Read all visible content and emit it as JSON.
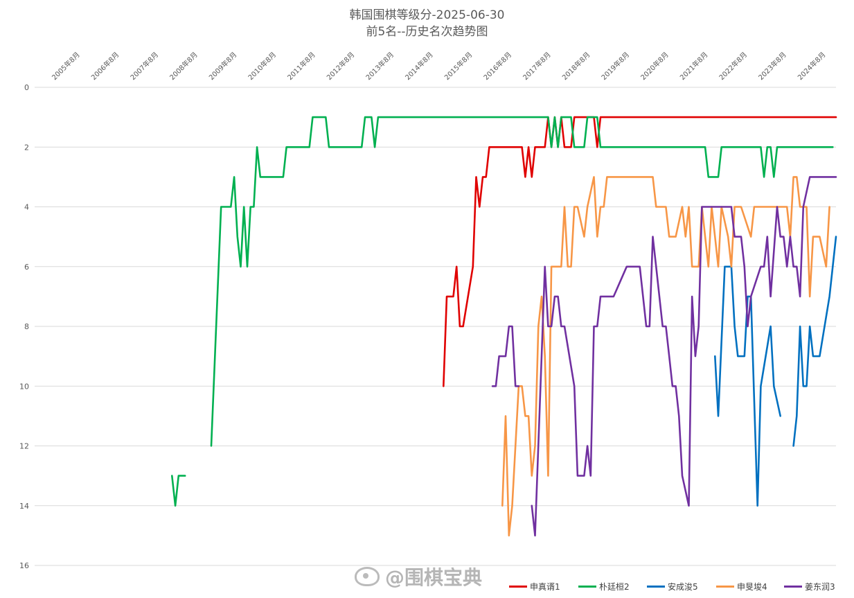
{
  "chart_data": {
    "type": "line",
    "title": "韩国围棋等级分-2025-06-30",
    "subtitle": "前5名--历史名次趋势图",
    "x_tick_labels": [
      "2005年8月",
      "2006年8月",
      "2007年8月",
      "2008年8月",
      "2009年8月",
      "2010年8月",
      "2011年8月",
      "2012年8月",
      "2013年8月",
      "2014年8月",
      "2015年8月",
      "2016年8月",
      "2017年8月",
      "2018年8月",
      "2019年8月",
      "2020年8月",
      "2021年8月",
      "2022年8月",
      "2023年8月",
      "2024年8月"
    ],
    "y_ticks": [
      0,
      2,
      4,
      6,
      8,
      10,
      12,
      14,
      16
    ],
    "ylim": [
      0,
      16
    ],
    "y_reversed": true,
    "x_range": [
      "2005-01",
      "2025-06"
    ],
    "grid": "horizontal",
    "legend_position": "bottom-right",
    "series": [
      {
        "name": "申真谞1",
        "color": "#e00000",
        "points": [
          [
            "2015-06",
            10
          ],
          [
            "2015-07",
            7
          ],
          [
            "2015-09",
            7
          ],
          [
            "2015-10",
            6
          ],
          [
            "2015-11",
            8
          ],
          [
            "2015-12",
            8
          ],
          [
            "2016-03",
            6
          ],
          [
            "2016-04",
            3
          ],
          [
            "2016-05",
            4
          ],
          [
            "2016-06",
            3
          ],
          [
            "2016-07",
            3
          ],
          [
            "2016-08",
            2
          ],
          [
            "2017-06",
            2
          ],
          [
            "2017-07",
            3
          ],
          [
            "2017-08",
            2
          ],
          [
            "2017-09",
            3
          ],
          [
            "2017-10",
            2
          ],
          [
            "2018-01",
            2
          ],
          [
            "2018-02",
            1
          ],
          [
            "2018-03",
            2
          ],
          [
            "2018-04",
            1
          ],
          [
            "2018-05",
            2
          ],
          [
            "2018-06",
            1
          ],
          [
            "2018-07",
            2
          ],
          [
            "2018-09",
            2
          ],
          [
            "2018-10",
            1
          ],
          [
            "2019-04",
            1
          ],
          [
            "2019-05",
            2
          ],
          [
            "2019-06",
            1
          ],
          [
            "2025-06",
            1
          ]
        ]
      },
      {
        "name": "朴廷桓2",
        "color": "#00b050",
        "points": [
          [
            "2008-07",
            13
          ],
          [
            "2008-08",
            14
          ],
          [
            "2008-09",
            13
          ],
          [
            "2008-11",
            13
          ],
          null,
          [
            "2009-07",
            12
          ],
          [
            "2009-10",
            4
          ],
          [
            "2010-01",
            4
          ],
          [
            "2010-02",
            3
          ],
          [
            "2010-03",
            5
          ],
          [
            "2010-04",
            6
          ],
          [
            "2010-05",
            4
          ],
          [
            "2010-06",
            6
          ],
          [
            "2010-07",
            4
          ],
          [
            "2010-08",
            4
          ],
          [
            "2010-09",
            2
          ],
          [
            "2010-10",
            3
          ],
          [
            "2011-05",
            3
          ],
          [
            "2011-06",
            2
          ],
          [
            "2012-01",
            2
          ],
          [
            "2012-02",
            1
          ],
          [
            "2012-06",
            1
          ],
          [
            "2012-07",
            2
          ],
          [
            "2013-05",
            2
          ],
          [
            "2013-06",
            1
          ],
          [
            "2013-08",
            1
          ],
          [
            "2013-09",
            2
          ],
          [
            "2013-10",
            1
          ],
          [
            "2018-02",
            1
          ],
          [
            "2018-03",
            2
          ],
          [
            "2018-04",
            1
          ],
          [
            "2018-05",
            2
          ],
          [
            "2018-06",
            1
          ],
          [
            "2018-09",
            1
          ],
          [
            "2018-10",
            2
          ],
          [
            "2019-01",
            2
          ],
          [
            "2019-02",
            1
          ],
          [
            "2019-05",
            1
          ],
          [
            "2019-06",
            2
          ],
          [
            "2022-02",
            2
          ],
          [
            "2022-03",
            3
          ],
          [
            "2022-06",
            3
          ],
          [
            "2022-07",
            2
          ],
          [
            "2023-07",
            2
          ],
          [
            "2023-08",
            3
          ],
          [
            "2023-09",
            2
          ],
          [
            "2023-10",
            2
          ],
          [
            "2023-11",
            3
          ],
          [
            "2023-12",
            2
          ],
          [
            "2025-05",
            2
          ]
        ]
      },
      {
        "name": "安成浚5",
        "color": "#0070c0",
        "points": [
          [
            "2022-05",
            9
          ],
          [
            "2022-06",
            11
          ],
          [
            "2022-08",
            6
          ],
          [
            "2022-10",
            6
          ],
          [
            "2022-11",
            8
          ],
          [
            "2022-12",
            9
          ],
          [
            "2023-02",
            9
          ],
          [
            "2023-03",
            7
          ],
          [
            "2023-04",
            7
          ],
          [
            "2023-06",
            14
          ],
          [
            "2023-07",
            10
          ],
          [
            "2023-10",
            8
          ],
          [
            "2023-11",
            10
          ],
          [
            "2024-01",
            11
          ],
          null,
          [
            "2024-05",
            12
          ],
          [
            "2024-06",
            11
          ],
          [
            "2024-07",
            8
          ],
          [
            "2024-08",
            10
          ],
          [
            "2024-09",
            10
          ],
          [
            "2024-10",
            8
          ],
          [
            "2024-11",
            9
          ],
          [
            "2025-01",
            9
          ],
          [
            "2025-04",
            7
          ],
          [
            "2025-06",
            5
          ]
        ]
      },
      {
        "name": "申旻埈4",
        "color": "#f79646",
        "points": [
          [
            "2016-12",
            14
          ],
          [
            "2017-01",
            11
          ],
          [
            "2017-02",
            15
          ],
          [
            "2017-03",
            14
          ],
          [
            "2017-05",
            10
          ],
          [
            "2017-06",
            10
          ],
          [
            "2017-07",
            11
          ],
          [
            "2017-08",
            11
          ],
          [
            "2017-09",
            13
          ],
          [
            "2017-10",
            12
          ],
          [
            "2017-11",
            8
          ],
          [
            "2017-12",
            7
          ],
          [
            "2018-01",
            9
          ],
          [
            "2018-02",
            13
          ],
          [
            "2018-03",
            6
          ],
          [
            "2018-06",
            6
          ],
          [
            "2018-07",
            4
          ],
          [
            "2018-08",
            6
          ],
          [
            "2018-09",
            6
          ],
          [
            "2018-10",
            4
          ],
          [
            "2018-11",
            4
          ],
          [
            "2019-01",
            5
          ],
          [
            "2019-02",
            4
          ],
          [
            "2019-04",
            3
          ],
          [
            "2019-05",
            5
          ],
          [
            "2019-06",
            4
          ],
          [
            "2019-07",
            4
          ],
          [
            "2019-08",
            3
          ],
          [
            "2020-10",
            3
          ],
          [
            "2020-11",
            4
          ],
          [
            "2021-02",
            4
          ],
          [
            "2021-03",
            5
          ],
          [
            "2021-05",
            5
          ],
          [
            "2021-07",
            4
          ],
          [
            "2021-08",
            5
          ],
          [
            "2021-09",
            4
          ],
          [
            "2021-10",
            6
          ],
          [
            "2021-12",
            6
          ],
          [
            "2022-01",
            4
          ],
          [
            "2022-02",
            5
          ],
          [
            "2022-03",
            6
          ],
          [
            "2022-04",
            4
          ],
          [
            "2022-05",
            5
          ],
          [
            "2022-06",
            6
          ],
          [
            "2022-07",
            4
          ],
          [
            "2022-09",
            5
          ],
          [
            "2022-10",
            6
          ],
          [
            "2022-11",
            4
          ],
          [
            "2022-12",
            4
          ],
          [
            "2023-01",
            4
          ],
          [
            "2023-04",
            5
          ],
          [
            "2023-05",
            4
          ],
          [
            "2024-03",
            4
          ],
          [
            "2024-04",
            5
          ],
          [
            "2024-05",
            3
          ],
          [
            "2024-06",
            3
          ],
          [
            "2024-07",
            4
          ],
          [
            "2024-09",
            4
          ],
          [
            "2024-10",
            7
          ],
          [
            "2024-11",
            5
          ],
          [
            "2025-01",
            5
          ],
          [
            "2025-03",
            6
          ],
          [
            "2025-04",
            4
          ]
        ]
      },
      {
        "name": "姜东润3",
        "color": "#7030a0",
        "points": [
          [
            "2016-09",
            10
          ],
          [
            "2016-10",
            10
          ],
          [
            "2016-11",
            9
          ],
          [
            "2016-12",
            9
          ],
          [
            "2017-01",
            9
          ],
          [
            "2017-02",
            8
          ],
          [
            "2017-03",
            8
          ],
          [
            "2017-04",
            10
          ],
          [
            "2017-05",
            10
          ],
          null,
          [
            "2017-09",
            14
          ],
          [
            "2017-10",
            15
          ],
          [
            "2018-01",
            6
          ],
          [
            "2018-02",
            8
          ],
          [
            "2018-03",
            8
          ],
          [
            "2018-04",
            7
          ],
          [
            "2018-05",
            7
          ],
          [
            "2018-06",
            8
          ],
          [
            "2018-07",
            8
          ],
          [
            "2018-10",
            10
          ],
          [
            "2018-11",
            13
          ],
          [
            "2019-01",
            13
          ],
          [
            "2019-02",
            12
          ],
          [
            "2019-03",
            13
          ],
          [
            "2019-04",
            8
          ],
          [
            "2019-05",
            8
          ],
          [
            "2019-06",
            7
          ],
          [
            "2019-10",
            7
          ],
          [
            "2020-02",
            6
          ],
          [
            "2020-06",
            6
          ],
          [
            "2020-08",
            8
          ],
          [
            "2020-09",
            8
          ],
          [
            "2020-10",
            5
          ],
          [
            "2020-11",
            6
          ],
          [
            "2021-01",
            8
          ],
          [
            "2021-02",
            8
          ],
          [
            "2021-03",
            9
          ],
          [
            "2021-04",
            10
          ],
          [
            "2021-05",
            10
          ],
          [
            "2021-06",
            11
          ],
          [
            "2021-07",
            13
          ],
          [
            "2021-09",
            14
          ],
          [
            "2021-10",
            7
          ],
          [
            "2021-11",
            9
          ],
          [
            "2021-12",
            8
          ],
          [
            "2022-01",
            4
          ],
          [
            "2022-02",
            4
          ],
          [
            "2022-10",
            4
          ],
          [
            "2022-11",
            5
          ],
          [
            "2023-01",
            5
          ],
          [
            "2023-02",
            6
          ],
          [
            "2023-03",
            8
          ],
          [
            "2023-04",
            7
          ],
          [
            "2023-07",
            6
          ],
          [
            "2023-08",
            6
          ],
          [
            "2023-09",
            5
          ],
          [
            "2023-10",
            7
          ],
          [
            "2023-12",
            4
          ],
          [
            "2024-01",
            5
          ],
          [
            "2024-02",
            5
          ],
          [
            "2024-03",
            6
          ],
          [
            "2024-04",
            5
          ],
          [
            "2024-05",
            6
          ],
          [
            "2024-06",
            6
          ],
          [
            "2024-07",
            7
          ],
          [
            "2024-08",
            4
          ],
          [
            "2024-10",
            3
          ],
          [
            "2025-06",
            3
          ]
        ]
      }
    ]
  },
  "watermark_text": "@围棋宝典",
  "watermark_icon": "weibo-logo-icon"
}
